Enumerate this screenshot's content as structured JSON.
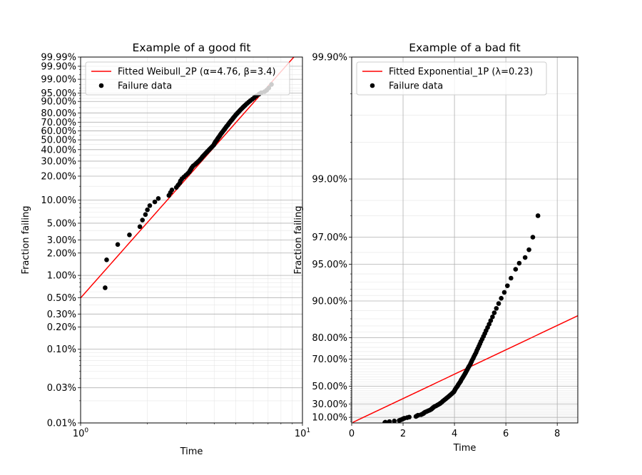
{
  "chart_data": [
    {
      "type": "scatter",
      "title": "Example of a good fit",
      "xlabel": "Time",
      "ylabel": "Fraction failing",
      "xscale": "log",
      "yscale": "weibull",
      "xlim": [
        1,
        10
      ],
      "ylim": [
        0.0001,
        0.9999
      ],
      "x_tick_labels": [
        {
          "v": 1,
          "base": "10",
          "exp": "0"
        },
        {
          "v": 10,
          "base": "10",
          "exp": "1"
        }
      ],
      "y_ticks": [
        {
          "v": 0.0001,
          "label": "0.01%"
        },
        {
          "v": 0.0003,
          "label": "0.03%"
        },
        {
          "v": 0.001,
          "label": "0.10%"
        },
        {
          "v": 0.002,
          "label": "0.20%"
        },
        {
          "v": 0.003,
          "label": "0.30%"
        },
        {
          "v": 0.005,
          "label": "0.50%"
        },
        {
          "v": 0.01,
          "label": "1.00%"
        },
        {
          "v": 0.02,
          "label": "2.00%"
        },
        {
          "v": 0.03,
          "label": "3.00%"
        },
        {
          "v": 0.05,
          "label": "5.00%"
        },
        {
          "v": 0.1,
          "label": "10.00%"
        },
        {
          "v": 0.2,
          "label": "20.00%"
        },
        {
          "v": 0.3,
          "label": "30.00%"
        },
        {
          "v": 0.4,
          "label": "40.00%"
        },
        {
          "v": 0.5,
          "label": "50.00%"
        },
        {
          "v": 0.6,
          "label": "60.00%"
        },
        {
          "v": 0.7,
          "label": "70.00%"
        },
        {
          "v": 0.8,
          "label": "80.00%"
        },
        {
          "v": 0.9,
          "label": "90.00%"
        },
        {
          "v": 0.95,
          "label": "95.00%"
        },
        {
          "v": 0.99,
          "label": "99.00%"
        },
        {
          "v": 0.999,
          "label": "99.90%"
        },
        {
          "v": 0.9999,
          "label": "99.99%"
        }
      ],
      "grid": true,
      "legend": "upper-left",
      "fit": {
        "name": "Fitted Weibull_2P (α=4.76, β=3.4)",
        "color": "#ff0000",
        "alpha": 4.76,
        "beta": 3.4
      },
      "series": [
        {
          "name": "Failure data",
          "color": "#000000",
          "points": [
            [
              1.29,
              0.0068
            ],
            [
              1.31,
              0.0162
            ],
            [
              1.47,
              0.026
            ],
            [
              1.66,
              0.035
            ],
            [
              1.85,
              0.045
            ],
            [
              1.9,
              0.055
            ],
            [
              1.96,
              0.065
            ],
            [
              2.0,
              0.075
            ],
            [
              2.05,
              0.085
            ],
            [
              2.16,
              0.095
            ],
            [
              2.24,
              0.105
            ],
            [
              2.5,
              0.115
            ],
            [
              2.54,
              0.125
            ],
            [
              2.58,
              0.135
            ],
            [
              2.7,
              0.145
            ],
            [
              2.75,
              0.155
            ],
            [
              2.8,
              0.165
            ],
            [
              2.82,
              0.175
            ],
            [
              2.86,
              0.185
            ],
            [
              2.92,
              0.195
            ],
            [
              2.98,
              0.205
            ],
            [
              3.04,
              0.215
            ],
            [
              3.09,
              0.225
            ],
            [
              3.12,
              0.235
            ],
            [
              3.15,
              0.245
            ],
            [
              3.18,
              0.255
            ],
            [
              3.22,
              0.265
            ],
            [
              3.28,
              0.275
            ],
            [
              3.33,
              0.285
            ],
            [
              3.38,
              0.295
            ],
            [
              3.43,
              0.305
            ],
            [
              3.47,
              0.315
            ],
            [
              3.51,
              0.325
            ],
            [
              3.54,
              0.335
            ],
            [
              3.58,
              0.345
            ],
            [
              3.62,
              0.355
            ],
            [
              3.66,
              0.365
            ],
            [
              3.7,
              0.375
            ],
            [
              3.74,
              0.385
            ],
            [
              3.78,
              0.395
            ],
            [
              3.82,
              0.405
            ],
            [
              3.86,
              0.415
            ],
            [
              3.9,
              0.425
            ],
            [
              3.94,
              0.435
            ],
            [
              3.98,
              0.445
            ],
            [
              4.0,
              0.455
            ],
            [
              4.02,
              0.465
            ],
            [
              4.04,
              0.475
            ],
            [
              4.07,
              0.485
            ],
            [
              4.1,
              0.495
            ],
            [
              4.13,
              0.505
            ],
            [
              4.15,
              0.515
            ],
            [
              4.18,
              0.525
            ],
            [
              4.21,
              0.535
            ],
            [
              4.24,
              0.545
            ],
            [
              4.26,
              0.555
            ],
            [
              4.29,
              0.565
            ],
            [
              4.32,
              0.575
            ],
            [
              4.35,
              0.585
            ],
            [
              4.38,
              0.595
            ],
            [
              4.41,
              0.605
            ],
            [
              4.44,
              0.615
            ],
            [
              4.47,
              0.625
            ],
            [
              4.5,
              0.635
            ],
            [
              4.53,
              0.645
            ],
            [
              4.56,
              0.655
            ],
            [
              4.6,
              0.665
            ],
            [
              4.63,
              0.675
            ],
            [
              4.66,
              0.685
            ],
            [
              4.69,
              0.695
            ],
            [
              4.73,
              0.705
            ],
            [
              4.76,
              0.715
            ],
            [
              4.8,
              0.725
            ],
            [
              4.84,
              0.735
            ],
            [
              4.87,
              0.745
            ],
            [
              4.91,
              0.755
            ],
            [
              4.95,
              0.765
            ],
            [
              4.99,
              0.775
            ],
            [
              5.03,
              0.785
            ],
            [
              5.08,
              0.795
            ],
            [
              5.13,
              0.805
            ],
            [
              5.18,
              0.815
            ],
            [
              5.23,
              0.825
            ],
            [
              5.29,
              0.835
            ],
            [
              5.35,
              0.845
            ],
            [
              5.41,
              0.855
            ],
            [
              5.48,
              0.865
            ],
            [
              5.55,
              0.875
            ],
            [
              5.63,
              0.885
            ],
            [
              5.72,
              0.895
            ],
            [
              5.82,
              0.905
            ],
            [
              5.94,
              0.915
            ],
            [
              6.06,
              0.925
            ],
            [
              6.2,
              0.935
            ],
            [
              6.38,
              0.945
            ],
            [
              6.52,
              0.951
            ],
            [
              6.75,
              0.956
            ],
            [
              6.9,
              0.962
            ],
            [
              7.05,
              0.97
            ],
            [
              7.25,
              0.98
            ]
          ]
        }
      ]
    },
    {
      "type": "scatter",
      "title": "Example of a bad fit",
      "xlabel": "Time",
      "ylabel": "Fraction failing",
      "xscale": "linear",
      "yscale": "exponential",
      "xlim": [
        0,
        8.8
      ],
      "ylim": [
        0,
        0.999
      ],
      "x_ticks": [
        0,
        2,
        4,
        6,
        8
      ],
      "y_ticks": [
        {
          "v": 0.1,
          "label": "10.00%"
        },
        {
          "v": 0.3,
          "label": "30.00%"
        },
        {
          "v": 0.5,
          "label": "50.00%"
        },
        {
          "v": 0.7,
          "label": "70.00%"
        },
        {
          "v": 0.8,
          "label": "80.00%"
        },
        {
          "v": 0.9,
          "label": "90.00%"
        },
        {
          "v": 0.95,
          "label": "95.00%"
        },
        {
          "v": 0.97,
          "label": "97.00%"
        },
        {
          "v": 0.99,
          "label": "99.00%"
        },
        {
          "v": 0.999,
          "label": "99.90%"
        }
      ],
      "grid": true,
      "legend": "upper-left",
      "fit": {
        "name": "Fitted Exponential_1P (λ=0.23)",
        "color": "#ff0000",
        "lambda": 0.23
      },
      "series": [
        {
          "name": "Failure data",
          "color": "#000000",
          "points": [
            [
              1.29,
              0.005
            ],
            [
              1.31,
              0.015
            ],
            [
              1.47,
              0.025
            ],
            [
              1.66,
              0.035
            ],
            [
              1.85,
              0.045
            ],
            [
              1.9,
              0.055
            ],
            [
              1.96,
              0.065
            ],
            [
              2.0,
              0.075
            ],
            [
              2.05,
              0.085
            ],
            [
              2.16,
              0.095
            ],
            [
              2.24,
              0.105
            ],
            [
              2.5,
              0.115
            ],
            [
              2.54,
              0.125
            ],
            [
              2.58,
              0.135
            ],
            [
              2.7,
              0.145
            ],
            [
              2.75,
              0.155
            ],
            [
              2.8,
              0.165
            ],
            [
              2.82,
              0.175
            ],
            [
              2.86,
              0.185
            ],
            [
              2.92,
              0.195
            ],
            [
              2.98,
              0.205
            ],
            [
              3.04,
              0.215
            ],
            [
              3.09,
              0.225
            ],
            [
              3.12,
              0.235
            ],
            [
              3.15,
              0.245
            ],
            [
              3.18,
              0.255
            ],
            [
              3.22,
              0.265
            ],
            [
              3.28,
              0.275
            ],
            [
              3.33,
              0.285
            ],
            [
              3.38,
              0.295
            ],
            [
              3.43,
              0.305
            ],
            [
              3.47,
              0.315
            ],
            [
              3.51,
              0.325
            ],
            [
              3.54,
              0.335
            ],
            [
              3.58,
              0.345
            ],
            [
              3.62,
              0.355
            ],
            [
              3.66,
              0.365
            ],
            [
              3.7,
              0.375
            ],
            [
              3.74,
              0.385
            ],
            [
              3.78,
              0.395
            ],
            [
              3.82,
              0.405
            ],
            [
              3.86,
              0.415
            ],
            [
              3.9,
              0.425
            ],
            [
              3.94,
              0.435
            ],
            [
              3.98,
              0.445
            ],
            [
              4.0,
              0.455
            ],
            [
              4.02,
              0.465
            ],
            [
              4.04,
              0.475
            ],
            [
              4.07,
              0.485
            ],
            [
              4.1,
              0.495
            ],
            [
              4.13,
              0.505
            ],
            [
              4.15,
              0.515
            ],
            [
              4.18,
              0.525
            ],
            [
              4.21,
              0.535
            ],
            [
              4.24,
              0.545
            ],
            [
              4.26,
              0.555
            ],
            [
              4.29,
              0.565
            ],
            [
              4.32,
              0.575
            ],
            [
              4.35,
              0.585
            ],
            [
              4.38,
              0.595
            ],
            [
              4.41,
              0.605
            ],
            [
              4.44,
              0.615
            ],
            [
              4.47,
              0.625
            ],
            [
              4.5,
              0.635
            ],
            [
              4.53,
              0.645
            ],
            [
              4.56,
              0.655
            ],
            [
              4.6,
              0.665
            ],
            [
              4.63,
              0.675
            ],
            [
              4.66,
              0.685
            ],
            [
              4.69,
              0.695
            ],
            [
              4.73,
              0.705
            ],
            [
              4.76,
              0.715
            ],
            [
              4.8,
              0.725
            ],
            [
              4.84,
              0.735
            ],
            [
              4.87,
              0.745
            ],
            [
              4.91,
              0.755
            ],
            [
              4.95,
              0.765
            ],
            [
              4.99,
              0.775
            ],
            [
              5.03,
              0.785
            ],
            [
              5.08,
              0.795
            ],
            [
              5.13,
              0.805
            ],
            [
              5.18,
              0.815
            ],
            [
              5.23,
              0.825
            ],
            [
              5.29,
              0.835
            ],
            [
              5.35,
              0.845
            ],
            [
              5.41,
              0.855
            ],
            [
              5.48,
              0.865
            ],
            [
              5.55,
              0.875
            ],
            [
              5.63,
              0.885
            ],
            [
              5.72,
              0.895
            ],
            [
              5.82,
              0.905
            ],
            [
              5.94,
              0.915
            ],
            [
              6.06,
              0.925
            ],
            [
              6.2,
              0.935
            ],
            [
              6.38,
              0.945
            ],
            [
              6.52,
              0.951
            ],
            [
              6.75,
              0.956
            ],
            [
              6.9,
              0.962
            ],
            [
              7.05,
              0.97
            ],
            [
              7.25,
              0.98
            ]
          ]
        }
      ]
    }
  ]
}
